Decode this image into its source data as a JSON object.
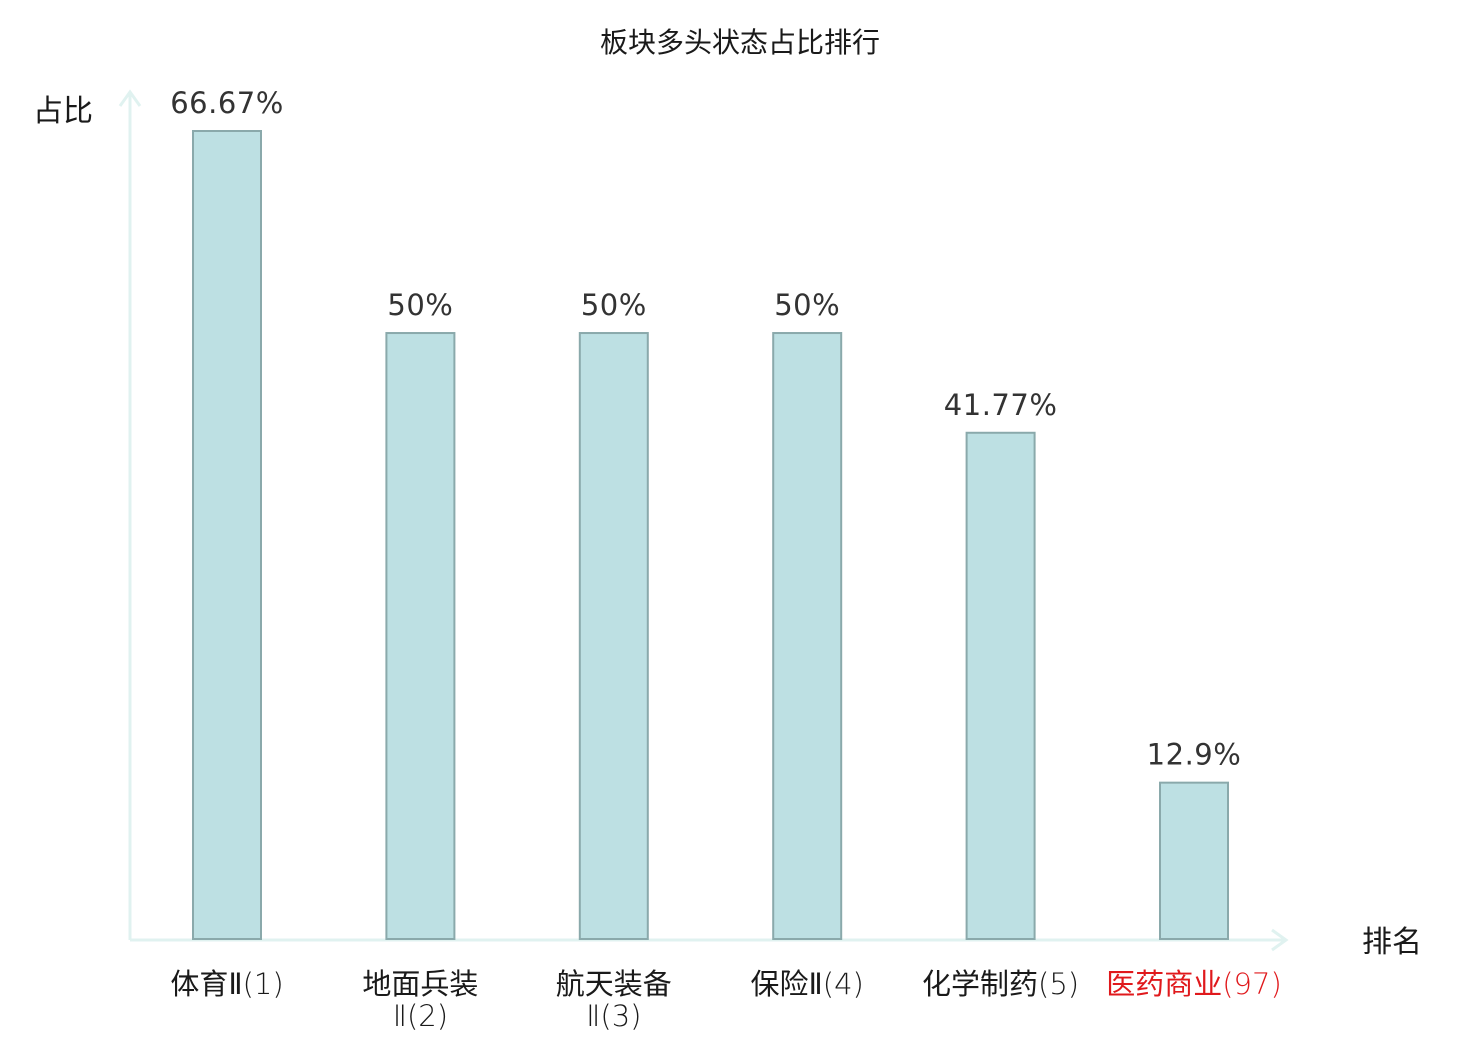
{
  "chart_data": {
    "type": "bar",
    "title": "板块多头状态占比排行",
    "ylabel": "占比",
    "xlabel": "排名",
    "ylim": [
      0,
      70
    ],
    "grid": false,
    "categories": [
      {
        "name": "体育Ⅱ",
        "rank": "(1)"
      },
      {
        "name": "地面兵装",
        "name2": "Ⅱ(2)"
      },
      {
        "name": "航天装备",
        "name2": "Ⅱ(3)"
      },
      {
        "name": "保险Ⅱ",
        "rank": "(4)"
      },
      {
        "name": "化学制药",
        "rank": "(5)"
      },
      {
        "name": "医药商业",
        "rank": "(97)",
        "highlight": true
      }
    ],
    "values": [
      66.67,
      50,
      50,
      50,
      41.77,
      12.9
    ],
    "value_labels": [
      "66.67%",
      "50%",
      "50%",
      "50%",
      "41.77%",
      "12.9%"
    ],
    "colors": {
      "bar_fill": "#bde0e3",
      "bar_stroke": "#8aa9ab",
      "axis": "#e0f2f0",
      "highlight": "#e0191c",
      "text": "#1a1a1a"
    }
  }
}
